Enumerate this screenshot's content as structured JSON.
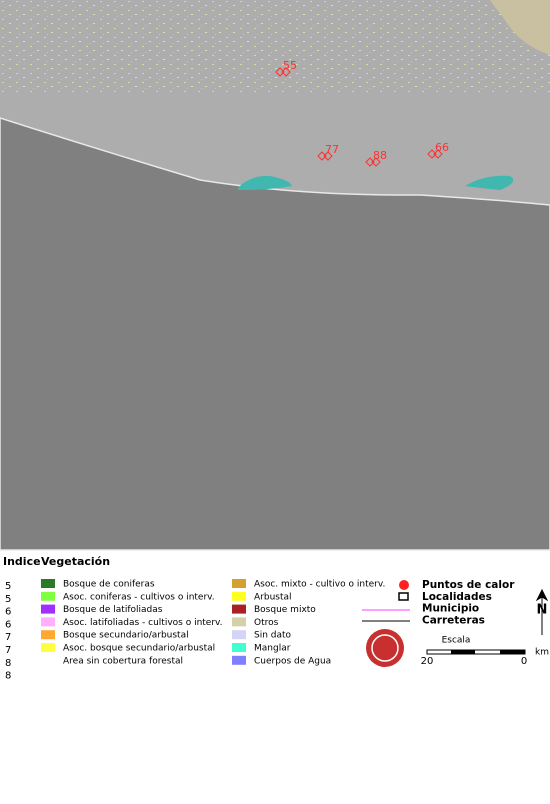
{
  "map": {
    "labels": [
      {
        "text": "55"
      },
      {
        "text": "77"
      },
      {
        "text": "88"
      },
      {
        "text": "66"
      }
    ]
  },
  "legend": {
    "header": {
      "indice": "Indice",
      "vegetacion": "Vegetación"
    },
    "index": [
      "5",
      "5",
      "6",
      "6",
      "7",
      "7",
      "8",
      "8"
    ],
    "vegetation": [
      {
        "label": "Bosque de coniferas",
        "color": "#2a7a2a"
      },
      {
        "label": "Asoc. coniferas - cultivos o interv.",
        "color": "#80ff40"
      },
      {
        "label": "Bosque de latifoliadas",
        "color": "#a030ff"
      },
      {
        "label": "Asoc. latifoliadas - cultivos o interv.",
        "color": "#ffb0ff"
      },
      {
        "label": "Bosque secundario/arbustal",
        "color": "#ffa830"
      },
      {
        "label": "Asoc. bosque secundario/arbustal",
        "color": "#ffff40"
      },
      {
        "label": "Area sin cobertura forestal",
        "color": "#ffffff"
      },
      {
        "label": "Asoc. mixto - cultivo o interv.",
        "color": "#d4a030"
      },
      {
        "label": "Arbustal",
        "color": "#ffff20"
      },
      {
        "label": "Bosque mixto",
        "color": "#a82020"
      },
      {
        "label": "Otros",
        "color": "#d4d0a8"
      },
      {
        "label": "Sin dato",
        "color": "#d4d4f4"
      },
      {
        "label": "Manglar",
        "color": "#40ffd0"
      },
      {
        "label": "Cuerpos de Agua",
        "color": "#8080ff"
      }
    ],
    "symbols": [
      "Puntos de calor",
      "Localidades",
      "Municipio",
      "Carreteras"
    ]
  },
  "scale": {
    "title": "Escala",
    "left": "20",
    "right": "0",
    "unit": "km",
    "north": "N"
  }
}
